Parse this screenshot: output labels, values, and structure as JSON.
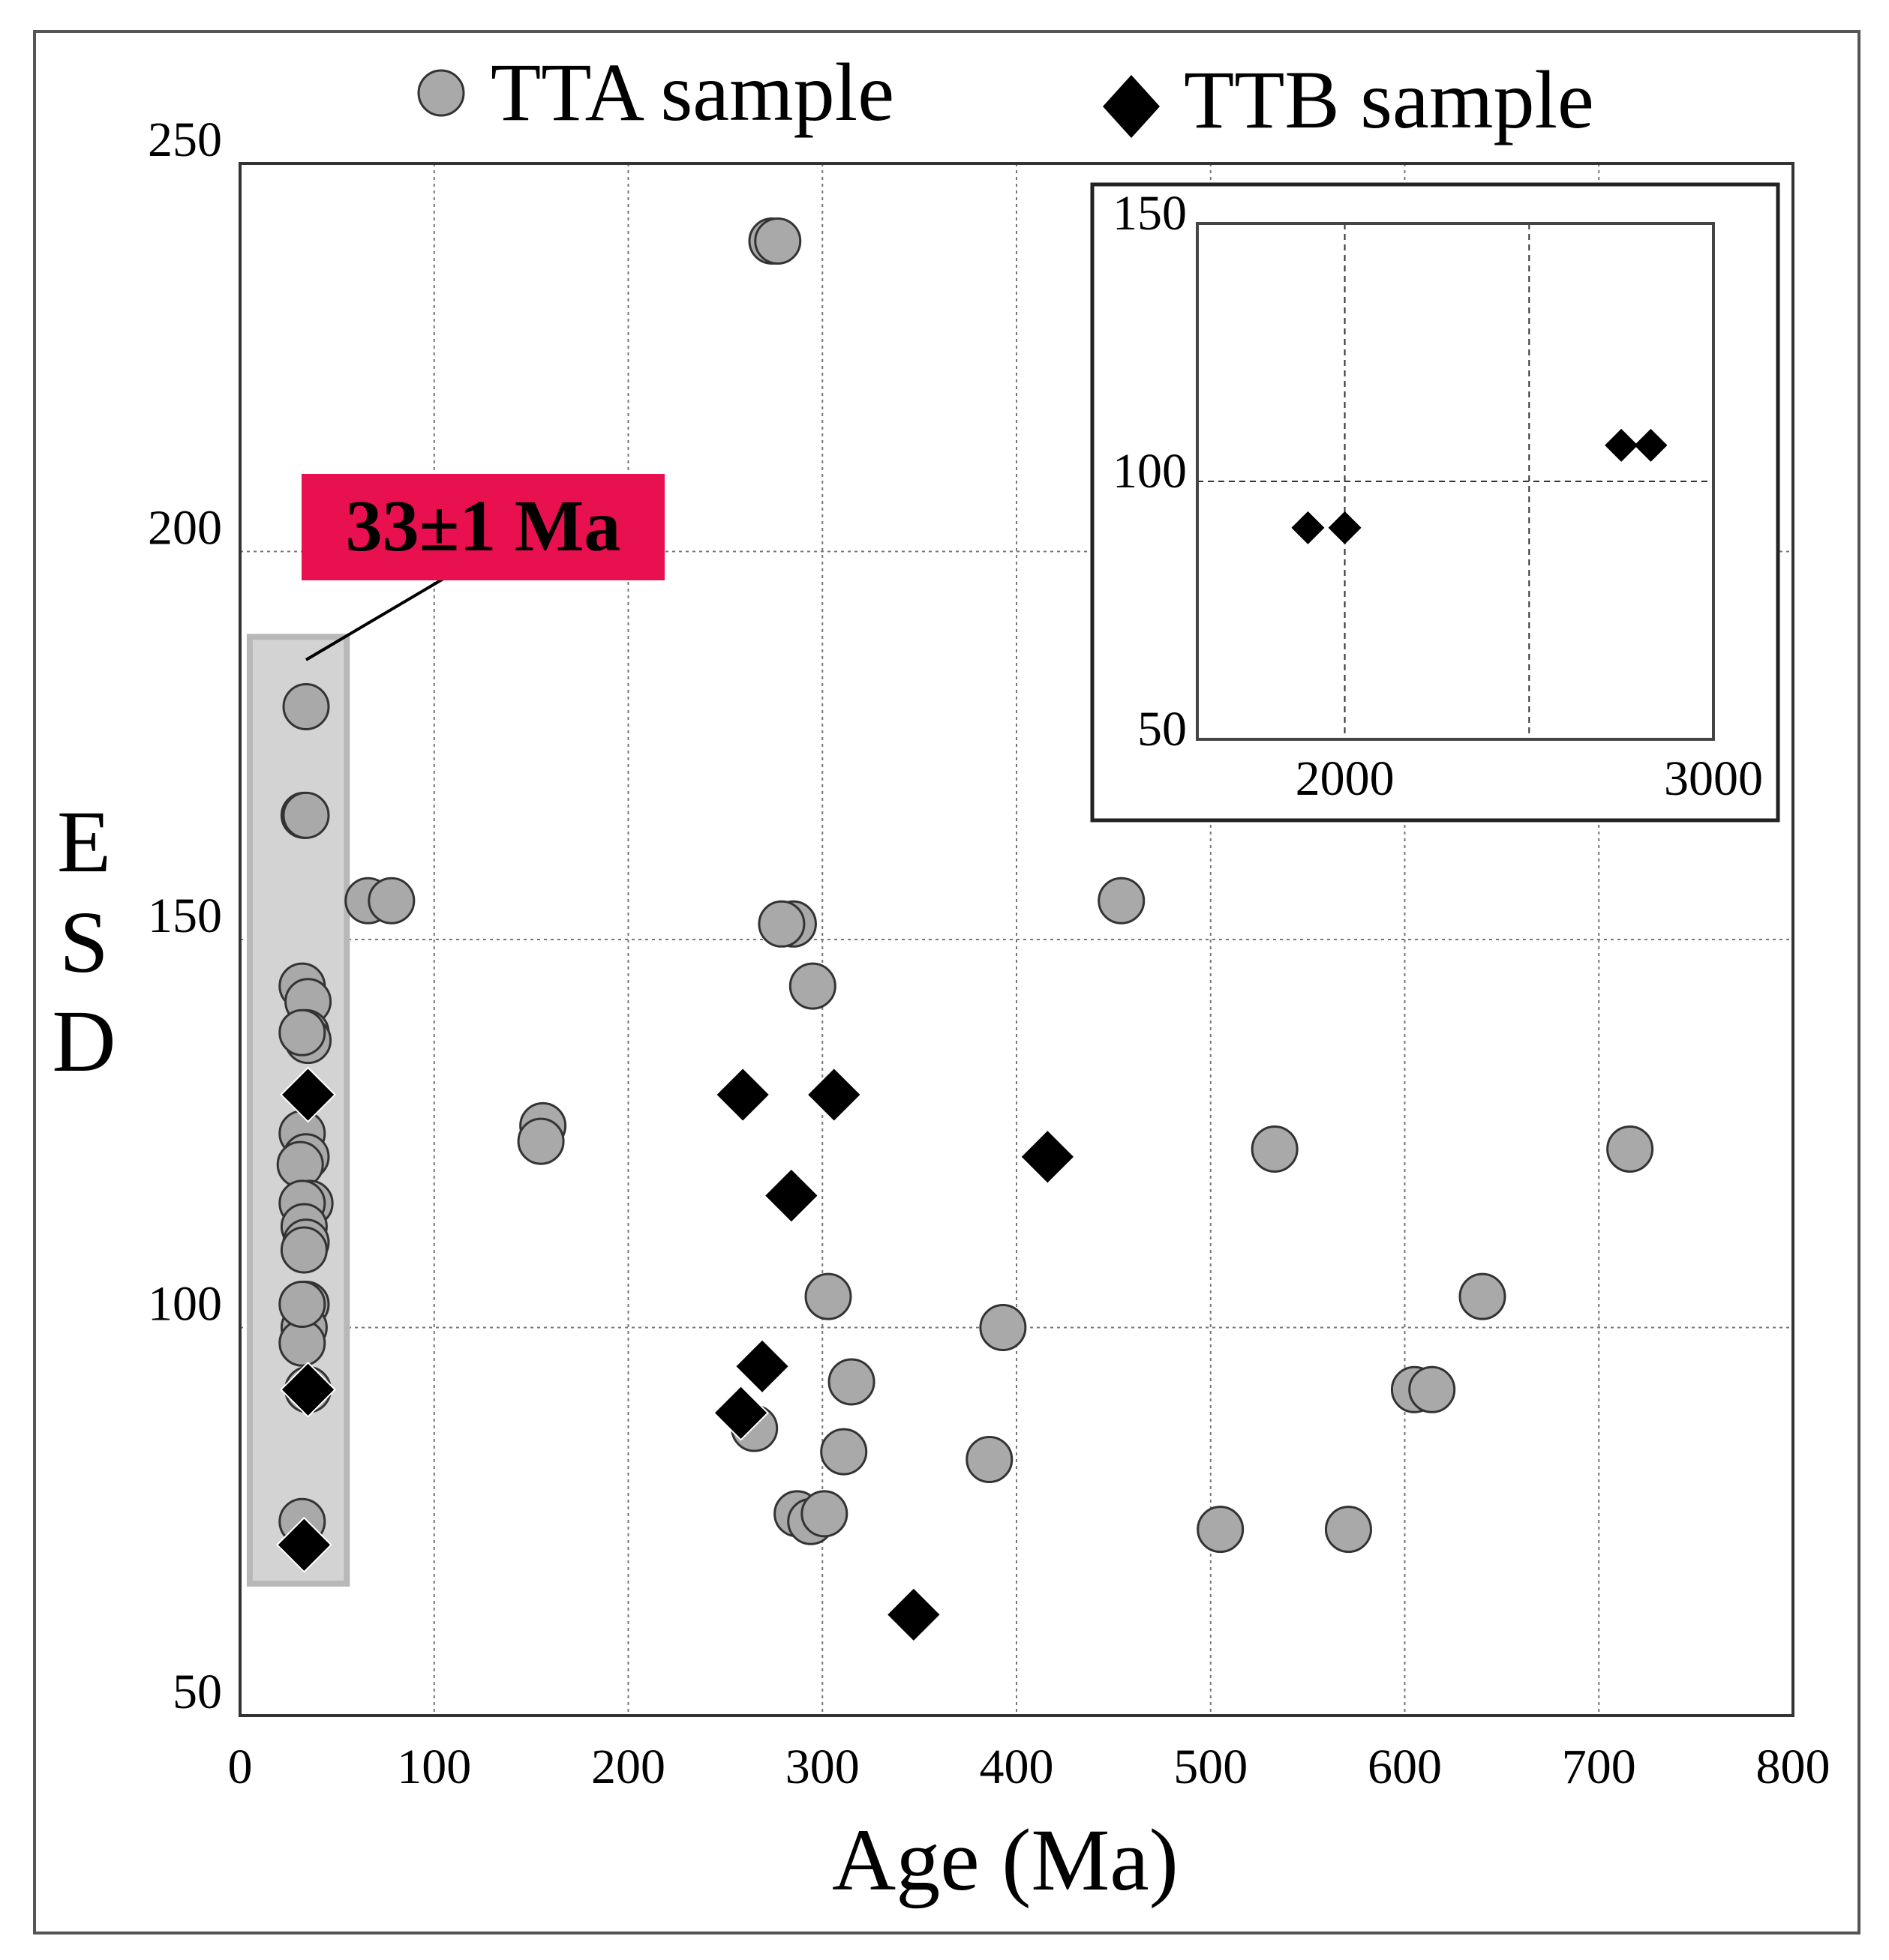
{
  "chart_data": {
    "type": "scatter",
    "title": "",
    "xlabel": "Age (Ma)",
    "ylabel": [
      "E",
      "S",
      "D"
    ],
    "xlim": [
      0,
      800
    ],
    "ylim": [
      50,
      250
    ],
    "xticks": [
      0,
      100,
      200,
      300,
      400,
      500,
      600,
      700,
      800
    ],
    "yticks": [
      50,
      100,
      150,
      200,
      250
    ],
    "grid": true,
    "legend": {
      "placement": "top",
      "entries": [
        {
          "label": "TTA sample",
          "marker": "circle",
          "color": "#a9a9a9"
        },
        {
          "label": "TTB sample",
          "marker": "diamond",
          "color": "#000000"
        }
      ]
    },
    "annotation": {
      "text": "33±1 Ma",
      "background": "#e8104f",
      "highlight_x_range": [
        5,
        55
      ],
      "highlight_y_range": [
        67,
        189
      ]
    },
    "series": [
      {
        "name": "TTA sample",
        "marker": "circle",
        "color": "#a9a9a9",
        "points": [
          [
            34,
            180
          ],
          [
            33,
            166
          ],
          [
            34,
            166
          ],
          [
            32,
            144
          ],
          [
            35,
            142
          ],
          [
            34,
            138
          ],
          [
            35,
            137
          ],
          [
            32,
            138
          ],
          [
            32,
            125
          ],
          [
            34,
            122
          ],
          [
            31,
            121
          ],
          [
            36,
            116
          ],
          [
            32,
            116
          ],
          [
            33,
            113
          ],
          [
            34,
            111
          ],
          [
            33,
            110
          ],
          [
            34,
            103
          ],
          [
            33,
            100
          ],
          [
            32,
            98
          ],
          [
            32,
            103
          ],
          [
            35,
            92
          ],
          [
            32,
            75
          ],
          [
            66,
            155
          ],
          [
            78,
            155
          ],
          [
            156,
            126
          ],
          [
            155,
            124
          ],
          [
            274,
            240
          ],
          [
            277,
            240
          ],
          [
            285,
            152
          ],
          [
            279,
            152
          ],
          [
            295,
            144
          ],
          [
            303,
            104
          ],
          [
            315,
            93
          ],
          [
            311,
            84
          ],
          [
            265,
            87
          ],
          [
            287,
            76
          ],
          [
            294,
            75
          ],
          [
            301,
            76
          ],
          [
            454,
            155
          ],
          [
            393,
            100
          ],
          [
            386,
            83
          ],
          [
            505,
            74
          ],
          [
            533,
            123
          ],
          [
            571,
            74
          ],
          [
            605,
            92
          ],
          [
            614,
            92
          ],
          [
            640,
            104
          ],
          [
            716,
            123
          ]
        ]
      },
      {
        "name": "TTB sample",
        "marker": "diamond",
        "color": "#000000",
        "points": [
          [
            35,
            130
          ],
          [
            35,
            92
          ],
          [
            33,
            72
          ],
          [
            259,
            130
          ],
          [
            306,
            130
          ],
          [
            284,
            117
          ],
          [
            416,
            122
          ],
          [
            269,
            95
          ],
          [
            258,
            89
          ],
          [
            347,
            63
          ]
        ]
      }
    ],
    "inset": {
      "xlim": [
        1600,
        3000
      ],
      "ylim": [
        50,
        150
      ],
      "xticks": [
        2000,
        3000
      ],
      "yticks": [
        50,
        100,
        150
      ],
      "grid_x": [
        2000,
        2500
      ],
      "grid_y": [
        100
      ],
      "series": [
        {
          "name": "TTB sample",
          "marker": "diamond",
          "color": "#000000",
          "points": [
            [
              1900,
              91
            ],
            [
              2000,
              91
            ],
            [
              2750,
              107
            ],
            [
              2830,
              107
            ]
          ]
        }
      ]
    }
  }
}
